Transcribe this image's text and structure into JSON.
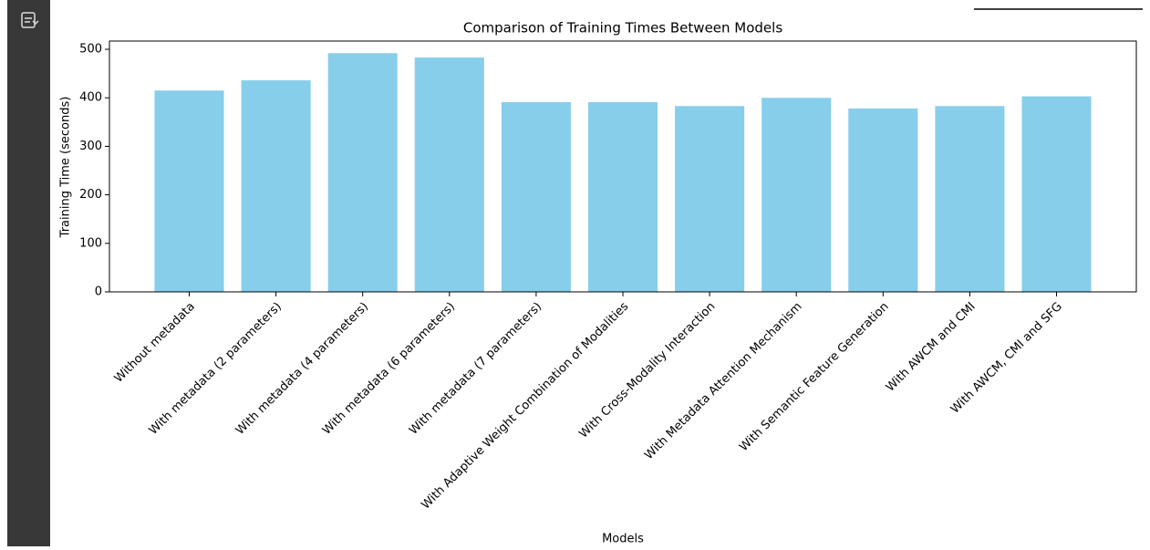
{
  "chart_data": {
    "type": "bar",
    "title": "Comparison of Training Times Between Models",
    "x_label": "Models",
    "y_label": "Training Time (seconds)",
    "categories": [
      "Without metadata",
      "With metadata (2 parameters)",
      "With metadata (4 parameters)",
      "With metadata (6 parameters)",
      "With metadata (7 parameters)",
      "With Adaptive Weight Combination of Modalities",
      "With Cross-Modality Interaction",
      "With Metadata Attention Mechanism",
      "With Semantic Feature Generation",
      "With AWCM and CMI",
      "With AWCM, CMI and SFG"
    ],
    "values": [
      415,
      436,
      492,
      483,
      391,
      391,
      383,
      400,
      378,
      383,
      403
    ],
    "color": "#87ceeb",
    "ylim": [
      0,
      517
    ],
    "yticks": [
      0,
      100,
      200,
      300,
      400,
      500
    ],
    "grid": false
  }
}
